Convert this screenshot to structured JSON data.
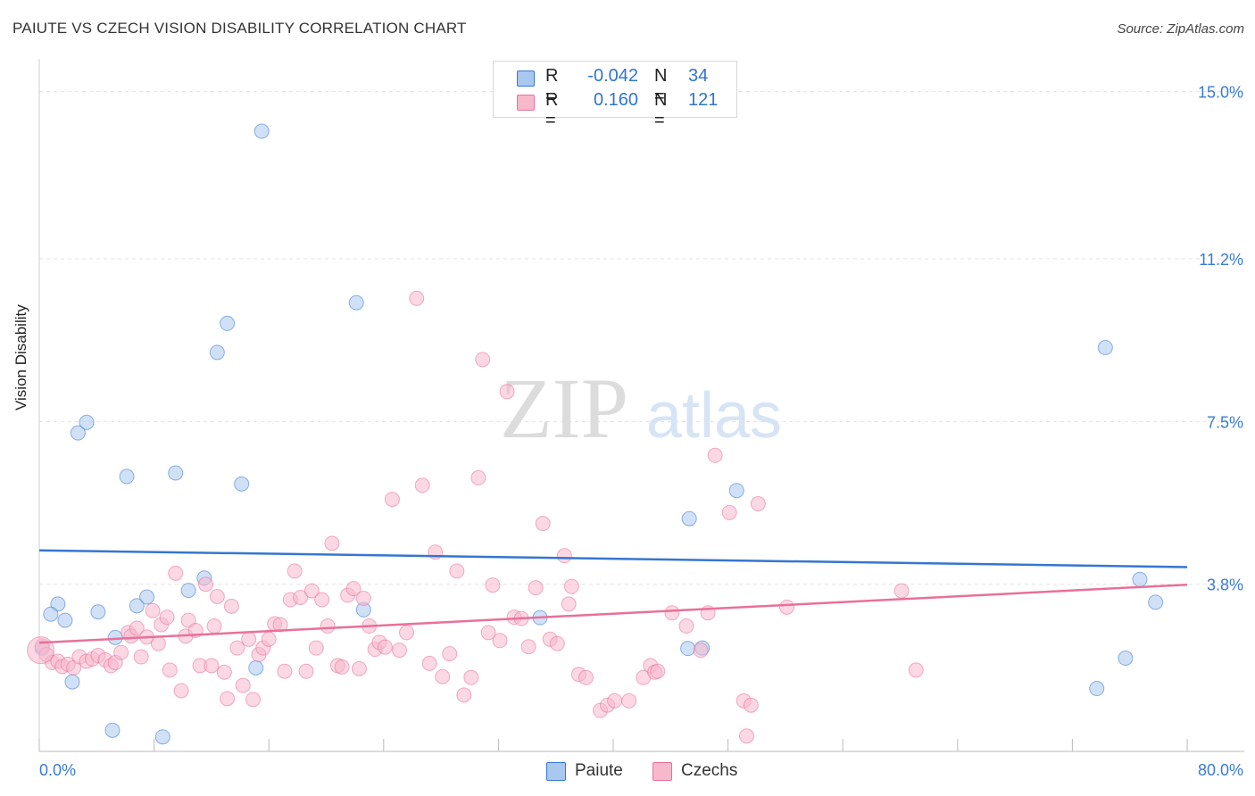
{
  "header": {
    "title": "PAIUTE VS CZECH VISION DISABILITY CORRELATION CHART",
    "source": "Source: ZipAtlas.com"
  },
  "watermark": {
    "zip": "ZIP",
    "atlas": "atlas"
  },
  "legend": {
    "series1": {
      "r_label": "R =",
      "r_value": "-0.042",
      "n_label": "N =",
      "n_value": "34",
      "color": "#a9c8f0"
    },
    "series2": {
      "r_label": "R =",
      "r_value": "0.160",
      "n_label": "N =",
      "n_value": "121",
      "color": "#f7b8cc"
    }
  },
  "bottom_legend": {
    "series1": "Paiute",
    "series2": "Czechs"
  },
  "chart_data": {
    "type": "scatter",
    "title": "PAIUTE VS CZECH VISION DISABILITY CORRELATION CHART",
    "ylabel": "Vision Disability",
    "xlabel": "",
    "xlim": [
      0,
      80
    ],
    "ylim": [
      0,
      15.5
    ],
    "x_tick_labels": [
      "0.0%",
      "80.0%"
    ],
    "y_ticks": [
      3.8,
      7.5,
      11.2,
      15.0
    ],
    "y_tick_labels": [
      "3.8%",
      "7.5%",
      "11.2%",
      "15.0%"
    ],
    "grid": true,
    "legend_position": "top-center",
    "series": [
      {
        "name": "Paiute",
        "color": "#3576d1",
        "fill": "#a9c8f0",
        "trend": {
          "x": [
            0,
            80
          ],
          "y": [
            4.57,
            4.19
          ]
        },
        "points": [
          [
            15.5,
            14.1
          ],
          [
            22.1,
            10.2
          ],
          [
            13.1,
            9.73
          ],
          [
            12.4,
            9.07
          ],
          [
            3.3,
            7.48
          ],
          [
            2.7,
            7.24
          ],
          [
            6.1,
            6.25
          ],
          [
            9.5,
            6.33
          ],
          [
            14.1,
            6.08
          ],
          [
            74.3,
            9.18
          ],
          [
            48.6,
            5.93
          ],
          [
            45.3,
            5.29
          ],
          [
            11.5,
            3.94
          ],
          [
            10.4,
            3.66
          ],
          [
            1.3,
            3.35
          ],
          [
            7.5,
            3.51
          ],
          [
            6.8,
            3.31
          ],
          [
            4.1,
            3.17
          ],
          [
            0.8,
            3.12
          ],
          [
            1.8,
            2.98
          ],
          [
            22.6,
            3.22
          ],
          [
            34.9,
            3.04
          ],
          [
            77.8,
            3.39
          ],
          [
            76.7,
            3.91
          ],
          [
            5.3,
            2.59
          ],
          [
            0.2,
            2.35
          ],
          [
            46.2,
            2.35
          ],
          [
            45.2,
            2.34
          ],
          [
            15.1,
            1.9
          ],
          [
            75.7,
            2.12
          ],
          [
            2.3,
            1.58
          ],
          [
            73.7,
            1.43
          ],
          [
            5.1,
            0.48
          ],
          [
            8.6,
            0.33
          ]
        ]
      },
      {
        "name": "Czechs",
        "color": "#e8709a",
        "fill": "#f7b8cc",
        "trend": {
          "x": [
            0,
            80
          ],
          "y": [
            2.47,
            3.79
          ]
        },
        "points": [
          [
            0.2,
            2.4
          ],
          [
            0.5,
            2.2
          ],
          [
            0.9,
            2.02
          ],
          [
            1.3,
            2.05
          ],
          [
            1.6,
            1.93
          ],
          [
            2.0,
            1.98
          ],
          [
            2.4,
            1.9
          ],
          [
            2.8,
            2.15
          ],
          [
            3.3,
            2.05
          ],
          [
            3.7,
            2.1
          ],
          [
            4.1,
            2.18
          ],
          [
            4.6,
            2.08
          ],
          [
            5.0,
            1.95
          ],
          [
            5.3,
            2.02
          ],
          [
            5.7,
            2.25
          ],
          [
            6.2,
            2.7
          ],
          [
            6.4,
            2.62
          ],
          [
            6.8,
            2.8
          ],
          [
            7.1,
            2.15
          ],
          [
            7.5,
            2.6
          ],
          [
            7.9,
            3.2
          ],
          [
            8.3,
            2.45
          ],
          [
            8.5,
            2.88
          ],
          [
            8.9,
            3.05
          ],
          [
            9.1,
            1.85
          ],
          [
            9.5,
            4.05
          ],
          [
            9.9,
            1.38
          ],
          [
            10.2,
            2.62
          ],
          [
            10.4,
            2.98
          ],
          [
            10.9,
            2.75
          ],
          [
            11.2,
            1.95
          ],
          [
            11.6,
            3.8
          ],
          [
            12.0,
            1.95
          ],
          [
            12.2,
            2.85
          ],
          [
            12.4,
            3.52
          ],
          [
            12.9,
            1.8
          ],
          [
            13.1,
            1.2
          ],
          [
            13.4,
            3.3
          ],
          [
            13.8,
            2.35
          ],
          [
            14.2,
            1.5
          ],
          [
            14.6,
            2.55
          ],
          [
            14.9,
            1.18
          ],
          [
            15.3,
            2.2
          ],
          [
            15.6,
            2.35
          ],
          [
            16.0,
            2.55
          ],
          [
            16.4,
            2.9
          ],
          [
            16.8,
            2.88
          ],
          [
            17.1,
            1.82
          ],
          [
            17.5,
            3.45
          ],
          [
            17.8,
            4.1
          ],
          [
            18.2,
            3.5
          ],
          [
            18.6,
            1.82
          ],
          [
            19.0,
            3.65
          ],
          [
            19.3,
            2.35
          ],
          [
            19.7,
            3.45
          ],
          [
            20.1,
            2.85
          ],
          [
            20.4,
            4.73
          ],
          [
            20.8,
            1.95
          ],
          [
            21.1,
            1.92
          ],
          [
            21.5,
            3.55
          ],
          [
            21.9,
            3.7
          ],
          [
            22.3,
            1.88
          ],
          [
            22.6,
            3.48
          ],
          [
            23.0,
            2.85
          ],
          [
            23.4,
            2.32
          ],
          [
            23.7,
            2.48
          ],
          [
            24.1,
            2.37
          ],
          [
            24.6,
            5.73
          ],
          [
            25.1,
            2.3
          ],
          [
            25.6,
            2.7
          ],
          [
            26.3,
            10.3
          ],
          [
            26.7,
            6.05
          ],
          [
            27.2,
            2.0
          ],
          [
            27.6,
            4.53
          ],
          [
            28.1,
            1.7
          ],
          [
            28.6,
            2.22
          ],
          [
            29.1,
            4.1
          ],
          [
            29.6,
            1.28
          ],
          [
            30.1,
            1.68
          ],
          [
            30.6,
            6.22
          ],
          [
            30.9,
            8.91
          ],
          [
            31.3,
            2.7
          ],
          [
            31.6,
            3.78
          ],
          [
            32.1,
            2.52
          ],
          [
            32.6,
            8.18
          ],
          [
            33.1,
            3.05
          ],
          [
            33.6,
            3.02
          ],
          [
            34.1,
            2.38
          ],
          [
            34.6,
            3.72
          ],
          [
            35.1,
            5.18
          ],
          [
            35.6,
            2.55
          ],
          [
            36.1,
            2.45
          ],
          [
            36.6,
            4.45
          ],
          [
            36.9,
            3.35
          ],
          [
            37.1,
            3.75
          ],
          [
            37.6,
            1.75
          ],
          [
            38.1,
            1.68
          ],
          [
            39.1,
            0.93
          ],
          [
            39.6,
            1.05
          ],
          [
            40.1,
            1.15
          ],
          [
            41.1,
            1.15
          ],
          [
            42.1,
            1.68
          ],
          [
            42.6,
            1.95
          ],
          [
            42.9,
            1.8
          ],
          [
            43.1,
            1.82
          ],
          [
            44.1,
            3.15
          ],
          [
            45.1,
            2.85
          ],
          [
            46.1,
            2.3
          ],
          [
            46.6,
            3.15
          ],
          [
            47.1,
            6.73
          ],
          [
            48.1,
            5.43
          ],
          [
            49.1,
            1.15
          ],
          [
            49.6,
            1.05
          ],
          [
            49.3,
            0.35
          ],
          [
            50.1,
            5.63
          ],
          [
            52.1,
            3.28
          ],
          [
            60.1,
            3.65
          ],
          [
            61.1,
            1.85
          ],
          [
            0.1,
            2.3
          ]
        ]
      }
    ]
  }
}
